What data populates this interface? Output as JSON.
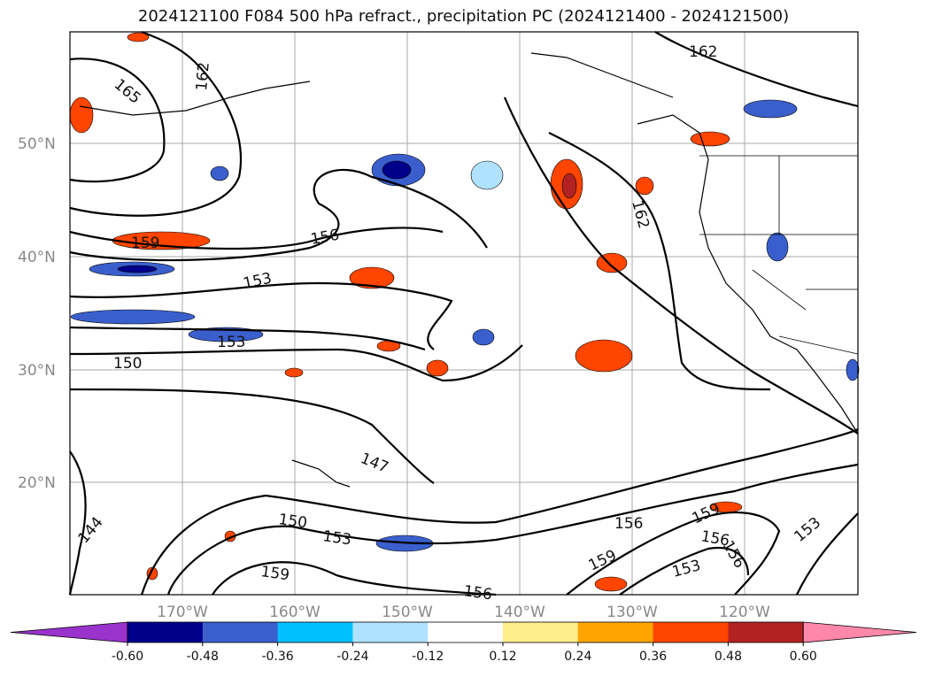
{
  "title": "2024121100 F084 500 hPa refract., precipitation PC (2024121400 - 2024121500)",
  "lat_labels": [
    "50°N",
    "40°N",
    "30°N",
    "20°N"
  ],
  "lon_labels": [
    "170°W",
    "160°W",
    "150°W",
    "140°W",
    "130°W",
    "120°W"
  ],
  "contour_labels": [
    "165",
    "162",
    "162",
    "162",
    "159",
    "156",
    "153",
    "153",
    "150",
    "147",
    "144",
    "150",
    "153",
    "159",
    "156",
    "156",
    "159",
    "156",
    "156",
    "159",
    "153",
    "153"
  ],
  "colorbar": {
    "tick_labels": [
      "-0.60",
      "-0.48",
      "-0.36",
      "-0.24",
      "-0.12",
      "0.12",
      "0.24",
      "0.36",
      "0.48",
      "0.60"
    ],
    "colors": [
      "#9933cc",
      "#00008b",
      "#3a5fcd",
      "#00bfff",
      "#b0e2ff",
      "#ffffff",
      "#ffec8b",
      "#ffa500",
      "#ff4500",
      "#b22222",
      "#ff88aa"
    ]
  }
}
